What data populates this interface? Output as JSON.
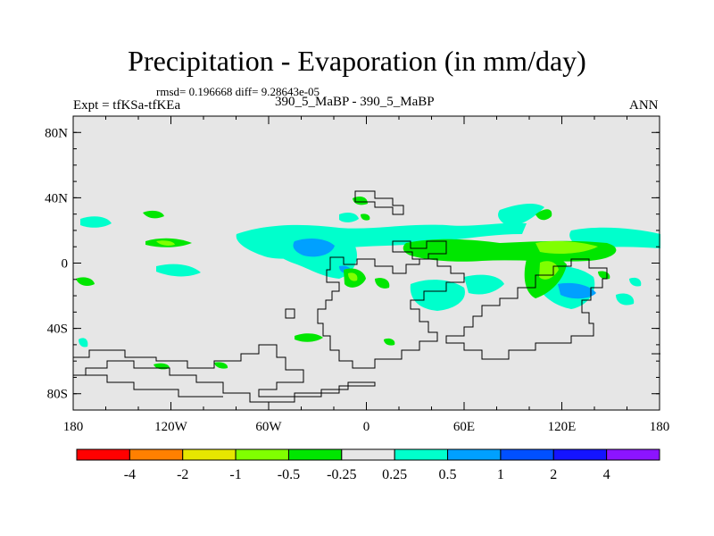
{
  "header": {
    "title": "Precipitation - Evaporation (in mm/day)",
    "stats": "rmsd= 0.196668 diff= 9.28643e-05",
    "expt": "Expt = tfKSa-tfKEa",
    "case": "390_5_MaBP - 390_5_MaBP",
    "season": "ANN"
  },
  "map": {
    "lat_labels": [
      "80N",
      "40N",
      "0",
      "40S",
      "80S"
    ],
    "lon_labels": [
      "180",
      "120W",
      "60W",
      "0",
      "60E",
      "120E",
      "180"
    ],
    "lat_values": [
      80,
      40,
      0,
      -40,
      -80
    ],
    "lon_values": [
      -180,
      -120,
      -60,
      0,
      60,
      120,
      180
    ],
    "lat_range": [
      -90,
      90
    ],
    "lon_range": [
      -180,
      180
    ],
    "background_color": "#e6e6e6"
  },
  "colorbar": {
    "colors": [
      "#ff0000",
      "#ff8000",
      "#e6e600",
      "#80ff00",
      "#00e600",
      "#e6e6e6",
      "#00ffcc",
      "#00a0ff",
      "#0050ff",
      "#1414ff",
      "#8c14ff"
    ],
    "labels": [
      "-4",
      "-2",
      "-1",
      "-0.5",
      "-0.25",
      "0.25",
      "0.5",
      "1",
      "2",
      "4"
    ]
  }
}
